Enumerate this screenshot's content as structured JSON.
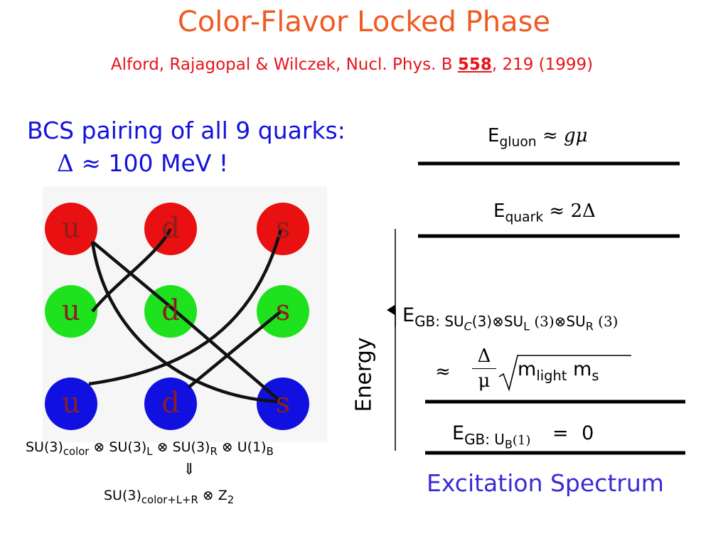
{
  "title": "Color-Flavor Locked Phase",
  "citation": {
    "authors": "Alford, Rajagopal & Wilczek, Nucl. Phys. B",
    "volume": "558",
    "rest": ", 219 (1999)"
  },
  "bcs": {
    "line1": "BCS pairing of all 9 quarks:",
    "delta_symbol": "Δ",
    "approx": "≈",
    "value": "100 MeV !"
  },
  "quarks": {
    "row_colors": [
      "#e81010",
      "#1ee21e",
      "#1010e0"
    ],
    "flavors": [
      "u",
      "d",
      "s"
    ]
  },
  "symmetry": {
    "su3": "SU(3)",
    "color_sub": "color",
    "otimes": "⊗",
    "L_sub": "L",
    "R_sub": "R",
    "u1": "U(1)",
    "B_sub": "B",
    "arrow": "⇓",
    "color_lr_sub": "color+L+R",
    "z": "Z",
    "z_sub": "2"
  },
  "axis_label": "Energy",
  "levels": {
    "gluon": {
      "E": "E",
      "sub": "gluon",
      "approx": "≈",
      "value": "gμ"
    },
    "quark": {
      "E": "E",
      "sub": "quark",
      "approx": "≈",
      "value": "2Δ"
    },
    "gb": {
      "E": "E",
      "sub": "GB:",
      "su": "SU",
      "c_sub": "C",
      "three": "(3)",
      "otimes": "⊗",
      "L_sub": "L",
      "R_sub": "R",
      "approx": "≈",
      "frac_num": "Δ",
      "frac_den": "μ",
      "m": "m",
      "light_sub": "light",
      "s_sub": "s"
    },
    "gb_u1": {
      "E": "E",
      "sub": "GB: U",
      "b_sub": "B",
      "one": "(1)",
      "eq": "=",
      "zero": "0"
    }
  },
  "caption": "Excitation Spectrum"
}
